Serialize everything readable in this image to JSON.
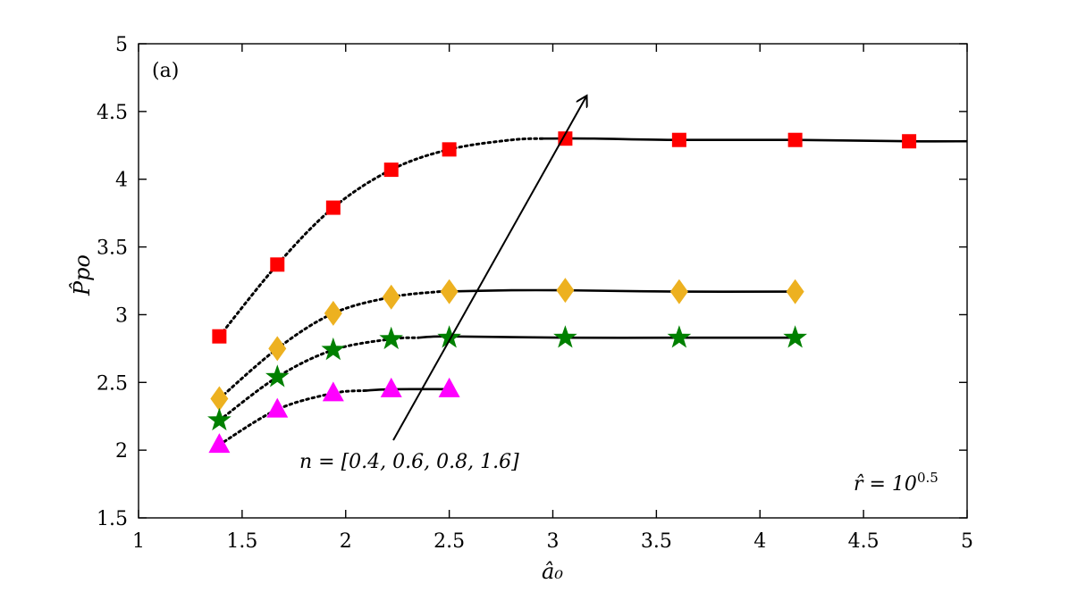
{
  "chart_data": {
    "type": "line",
    "panel_label": "(a)",
    "xlabel": "â₀",
    "ylabel": "P̂po",
    "xlim": [
      1,
      5
    ],
    "ylim": [
      1.5,
      5
    ],
    "xticks": [
      "1",
      "1.5",
      "2",
      "2.5",
      "3",
      "3.5",
      "4",
      "4.5",
      "5"
    ],
    "yticks": [
      "1.5",
      "2",
      "2.5",
      "3",
      "3.5",
      "4",
      "4.5",
      "5"
    ],
    "grid": false,
    "annotations": {
      "arrow_label": "n = [0.4, 0.6, 0.8, 1.6]",
      "r_label_base": "r̂ = 10",
      "r_label_exp": "0.5"
    },
    "series": [
      {
        "marker": "square",
        "color": "#ff0000",
        "x": [
          1.39,
          1.67,
          1.94,
          2.22,
          2.5,
          3.06,
          3.61,
          4.17,
          4.72
        ],
        "y": [
          2.84,
          3.37,
          3.79,
          4.07,
          4.22,
          4.3,
          4.29,
          4.29,
          4.28
        ],
        "curve": {
          "dotted": [
            [
              1.39,
              2.84
            ],
            [
              1.67,
              3.37
            ],
            [
              1.94,
              3.79
            ],
            [
              2.22,
              4.07
            ],
            [
              2.5,
              4.22
            ],
            [
              2.8,
              4.29
            ],
            [
              2.95,
              4.3
            ]
          ],
          "solid": [
            [
              2.95,
              4.3
            ],
            [
              3.2,
              4.3
            ],
            [
              3.61,
              4.29
            ],
            [
              4.17,
              4.29
            ],
            [
              4.72,
              4.28
            ],
            [
              5.0,
              4.28
            ]
          ]
        }
      },
      {
        "marker": "diamond",
        "color": "#edb120",
        "x": [
          1.39,
          1.67,
          1.94,
          2.22,
          2.5,
          3.06,
          3.61,
          4.17
        ],
        "y": [
          2.38,
          2.75,
          3.01,
          3.13,
          3.17,
          3.18,
          3.17,
          3.17
        ],
        "curve": {
          "dotted": [
            [
              1.39,
              2.38
            ],
            [
              1.67,
              2.75
            ],
            [
              1.94,
              3.01
            ],
            [
              2.22,
              3.13
            ],
            [
              2.45,
              3.17
            ]
          ],
          "solid": [
            [
              2.45,
              3.17
            ],
            [
              2.8,
              3.18
            ],
            [
              3.06,
              3.18
            ],
            [
              3.61,
              3.17
            ],
            [
              4.17,
              3.17
            ]
          ]
        }
      },
      {
        "marker": "pentagram",
        "color": "#008000",
        "x": [
          1.39,
          1.67,
          1.94,
          2.22,
          2.5,
          3.06,
          3.61,
          4.17
        ],
        "y": [
          2.22,
          2.54,
          2.74,
          2.82,
          2.83,
          2.83,
          2.83,
          2.83
        ],
        "curve": {
          "dotted": [
            [
              1.39,
              2.22
            ],
            [
              1.67,
              2.54
            ],
            [
              1.94,
              2.74
            ],
            [
              2.22,
              2.82
            ],
            [
              2.35,
              2.83
            ]
          ],
          "solid": [
            [
              2.35,
              2.83
            ],
            [
              2.5,
              2.84
            ],
            [
              3.06,
              2.83
            ],
            [
              3.61,
              2.83
            ],
            [
              4.17,
              2.83
            ]
          ]
        }
      },
      {
        "marker": "triangle",
        "color": "#ff00ff",
        "x": [
          1.39,
          1.67,
          1.94,
          2.22,
          2.5
        ],
        "y": [
          2.04,
          2.3,
          2.42,
          2.45,
          2.45
        ],
        "curve": {
          "dotted": [
            [
              1.39,
              2.04
            ],
            [
              1.67,
              2.3
            ],
            [
              1.94,
              2.42
            ],
            [
              2.1,
              2.44
            ]
          ],
          "solid": [
            [
              2.1,
              2.44
            ],
            [
              2.22,
              2.45
            ],
            [
              2.5,
              2.45
            ]
          ]
        }
      }
    ]
  }
}
